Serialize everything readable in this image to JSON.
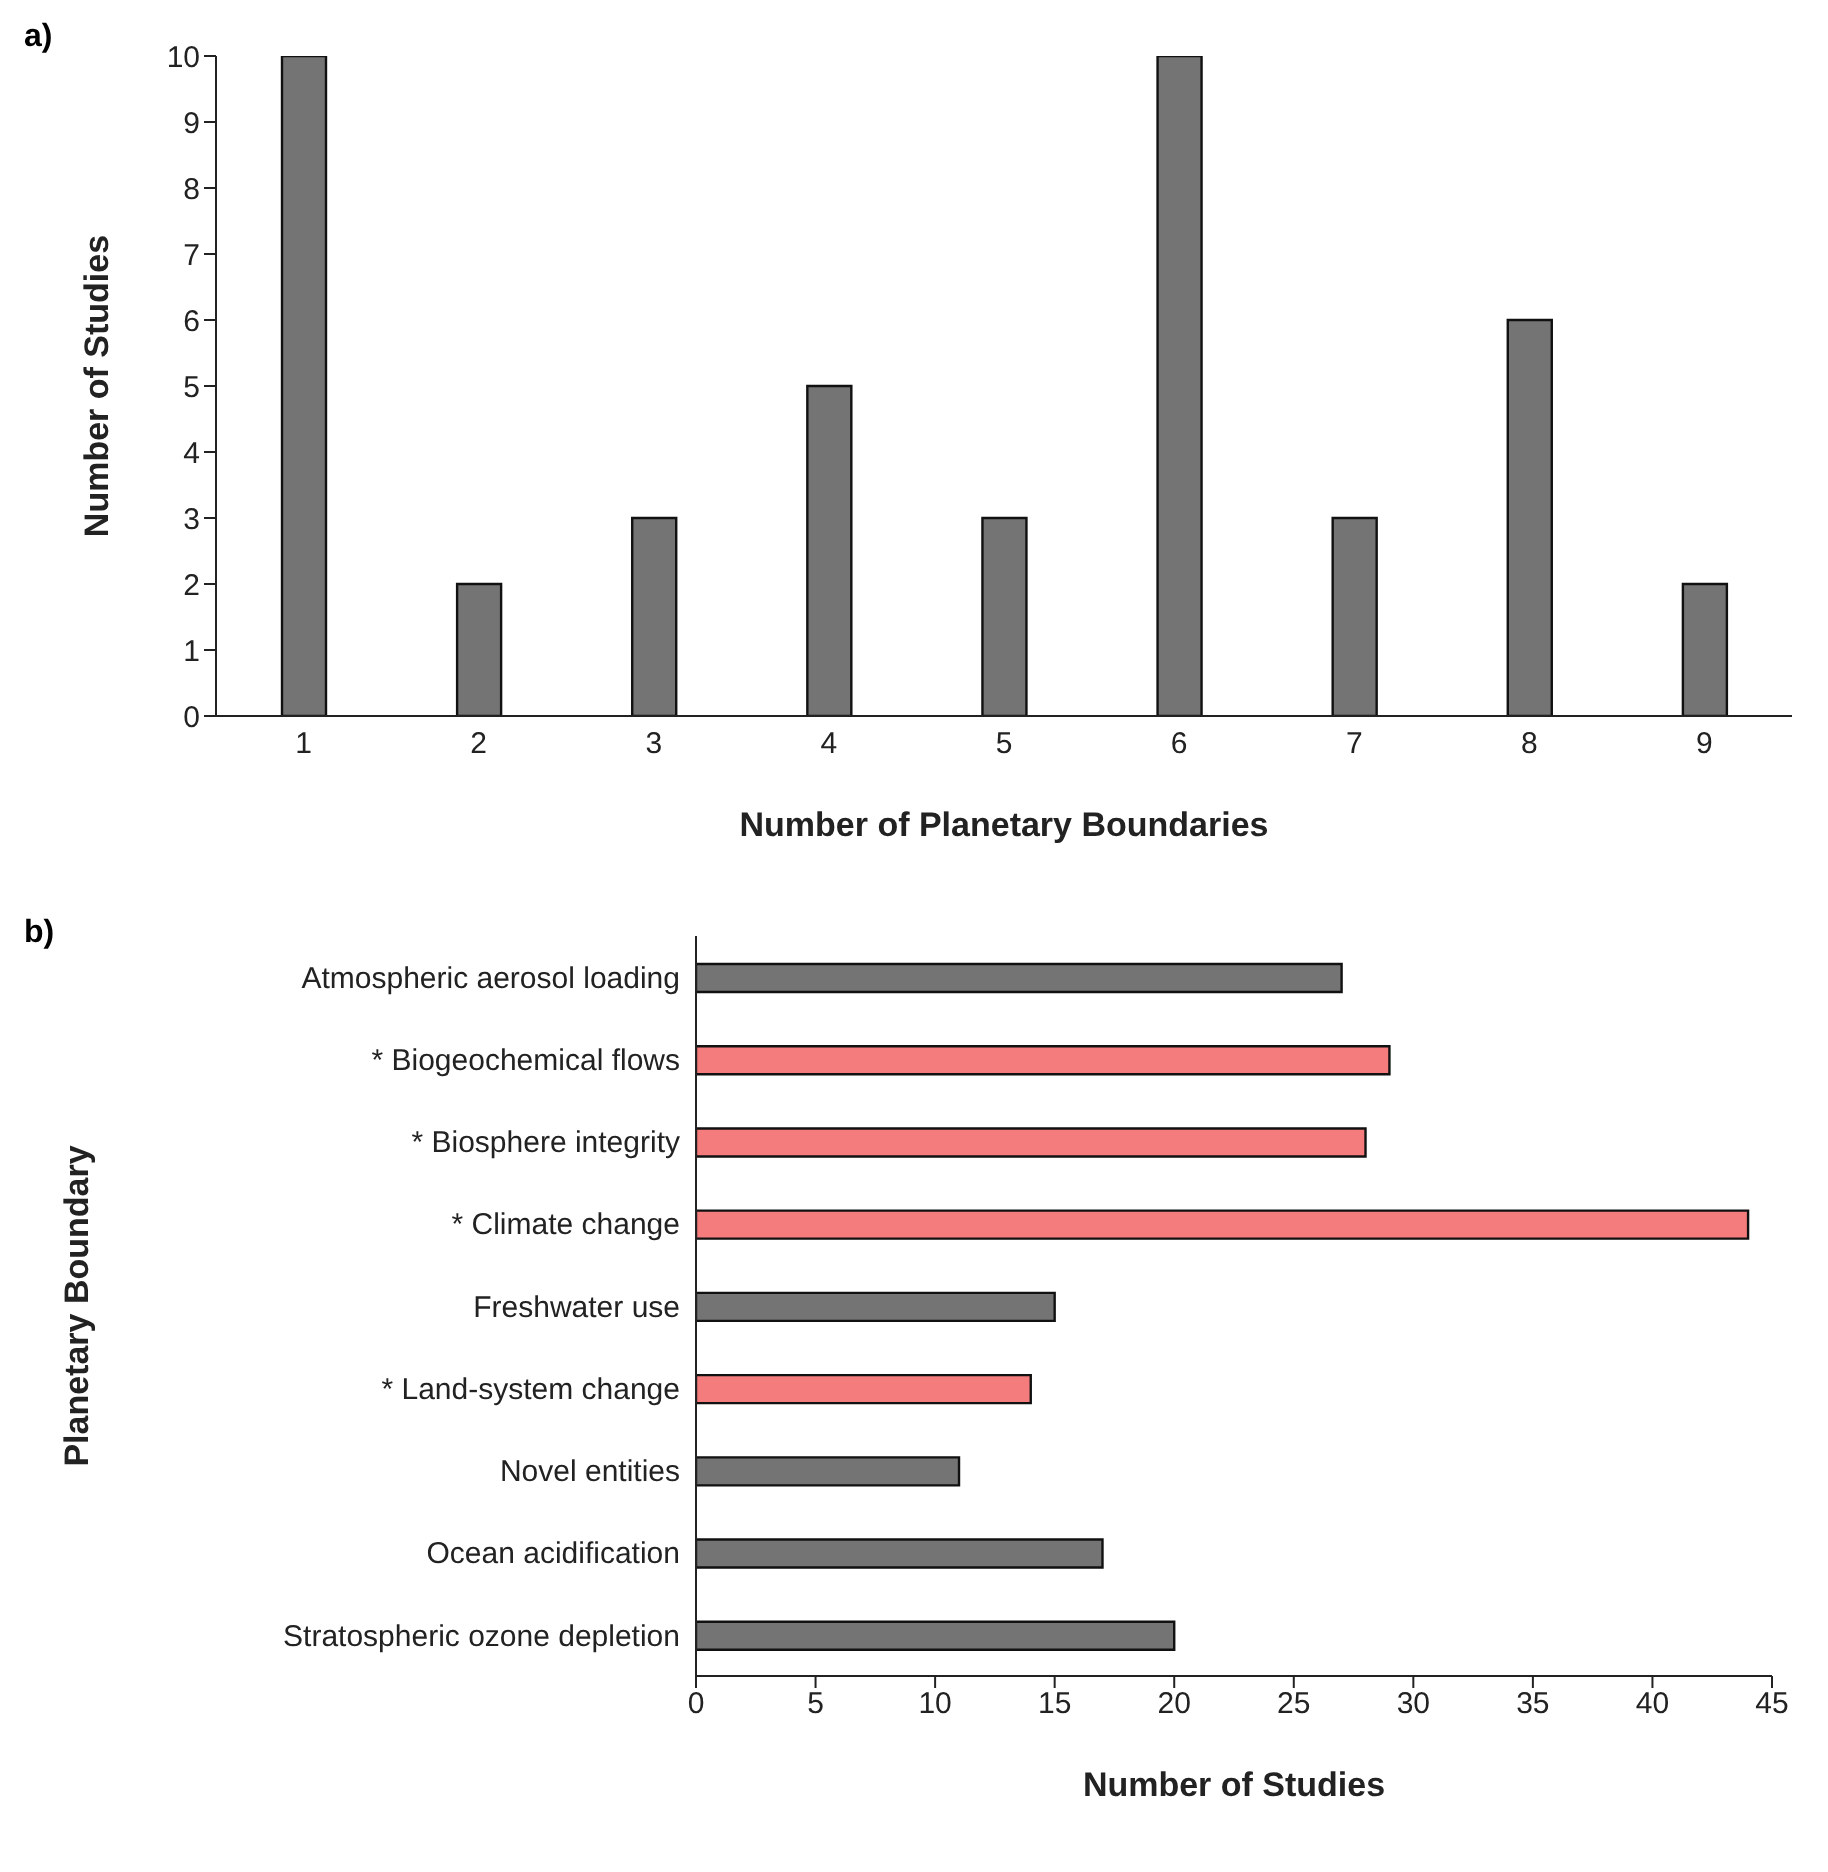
{
  "chart_data": [
    {
      "type": "bar",
      "xlabel": "Number of Planetary Boundaries",
      "ylabel": "Number of Studies",
      "annotations": [
        "a)"
      ],
      "categories": [
        "1",
        "2",
        "3",
        "4",
        "5",
        "6",
        "7",
        "8",
        "9"
      ],
      "values": [
        10,
        2,
        3,
        5,
        3,
        10,
        3,
        6,
        2
      ],
      "color": "#747474",
      "ylim": [
        0,
        10
      ],
      "yticks": [
        0,
        1,
        2,
        3,
        4,
        5,
        6,
        7,
        8,
        9,
        10
      ],
      "grid": false,
      "legend": false
    },
    {
      "type": "bar",
      "orientation": "horizontal",
      "xlabel": "Number of Studies",
      "ylabel": "Planetary Boundary",
      "annotations": [
        "b)"
      ],
      "categories": [
        "Atmospheric aerosol loading",
        "* Biogeochemical flows",
        "* Biosphere integrity",
        "* Climate change",
        "Freshwater use",
        "* Land-system change",
        "Novel entities",
        "Ocean acidification",
        "Stratospheric ozone depletion"
      ],
      "values": [
        27,
        29,
        28,
        44,
        15,
        14,
        11,
        17,
        20
      ],
      "colors": [
        "#747474",
        "#f47c7c",
        "#f47c7c",
        "#f47c7c",
        "#747474",
        "#f47c7c",
        "#747474",
        "#747474",
        "#747474"
      ],
      "xlim": [
        0,
        45
      ],
      "xticks": [
        0,
        5,
        10,
        15,
        20,
        25,
        30,
        35,
        40,
        45
      ],
      "grid": false,
      "legend": false
    }
  ]
}
